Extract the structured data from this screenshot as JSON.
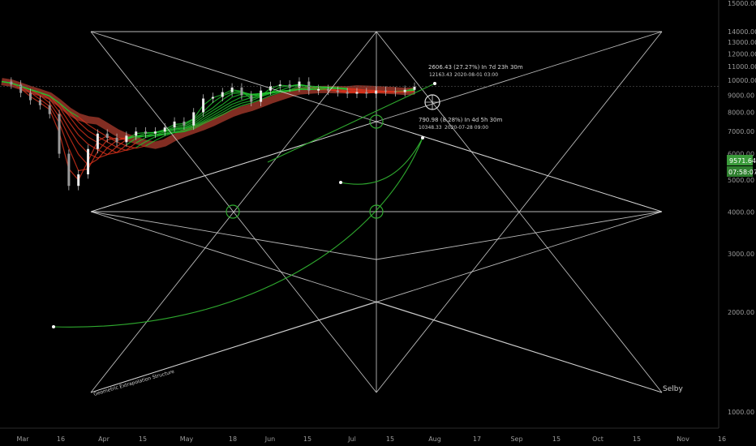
{
  "chart_data": {
    "type": "line",
    "title": "",
    "xlabel": "",
    "ylabel": "",
    "ylim": [
      0,
      15000
    ],
    "y_ticks": [
      "15000.00",
      "14000.00",
      "13000.00",
      "12000.00",
      "11000.00",
      "10000.00",
      "9000.00",
      "8000.00",
      "7000.00",
      "6000.00",
      "5000.00",
      "4000.00",
      "3000.00",
      "2000.00",
      "1000.00"
    ],
    "x_ticks": [
      "Mar",
      "16",
      "Apr",
      "15",
      "May",
      "18",
      "Jun",
      "15",
      "Jul",
      "15",
      "Aug",
      "17",
      "Sep",
      "15",
      "Oct",
      "15",
      "Nov",
      "16"
    ],
    "grid": false,
    "price_label": "9571.64",
    "countdown_label": "07:58:07",
    "annotations": {
      "upper_measure": "2606.43 (27.27%) In 7d 23h 30m",
      "upper_point": "12163.43",
      "upper_date": "2020-08-01 03:00",
      "lower_measure": "790.98 (8.28%) In 4d 5h 30m",
      "lower_point": "10348.33",
      "lower_date": "2020-07-28 09:00",
      "structure_label": "Geometric Extrapolation Structure",
      "author_label": "Selby"
    },
    "series": [
      {
        "values": [
          9900,
          9700,
          9150,
          8700,
          8400,
          7900,
          6000,
          4800,
          5200,
          6200,
          6900,
          6700,
          6500,
          6800,
          7000,
          6900,
          7000,
          7200,
          7500,
          7300,
          8000,
          8800,
          8900,
          9200,
          9500,
          9000,
          8600,
          9300,
          9600,
          9700,
          9500,
          9900,
          9300,
          9400,
          9300,
          9200,
          9100,
          9200,
          9100,
          9300,
          9250,
          9200,
          9350,
          9550
        ]
      }
    ],
    "colors": {
      "background": "#000000",
      "structure_lines": "#d9d9d9",
      "up_band": "#22c32e",
      "down_band": "#d8321c",
      "slow_band": "#8f3226",
      "price_label_bg": "#3a9a3a",
      "extrapolation_curve": "#2ea82e"
    }
  }
}
